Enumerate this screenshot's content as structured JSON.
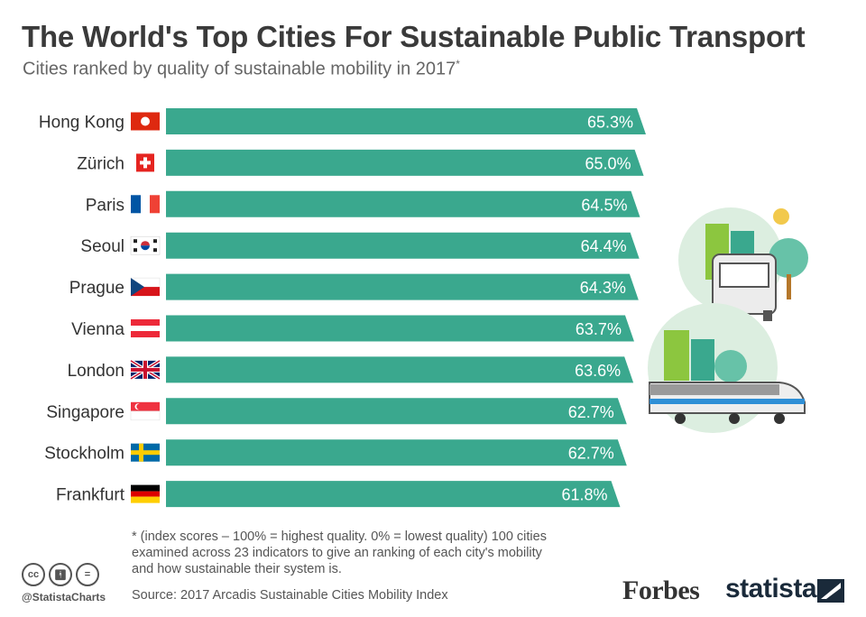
{
  "title": "The World's Top Cities For Sustainable Public Transport",
  "subtitle": "Cities ranked by quality of sustainable mobility in 2017",
  "subtitle_marker": "*",
  "footnote": "* (index scores – 100% = highest quality. 0% = lowest quality) 100 cities examined across 23 indicators to give an ranking of each city's mobility and how sustainable their system is.",
  "source": "Source: 2017 Arcadis Sustainable Cities Mobility Index",
  "handle": "@StatistaCharts",
  "brands": {
    "forbes": "Forbes",
    "statista": "statista"
  },
  "colors": {
    "bar": "#3aa88e",
    "bar_text": "#ffffff",
    "title": "#3a3a3a"
  },
  "chart_data": {
    "type": "bar",
    "orientation": "horizontal",
    "categories": [
      "Hong Kong",
      "Zürich",
      "Paris",
      "Seoul",
      "Prague",
      "Vienna",
      "London",
      "Singapore",
      "Stockholm",
      "Frankfurt"
    ],
    "values": [
      65.3,
      65.0,
      64.5,
      64.4,
      64.3,
      63.7,
      63.6,
      62.7,
      62.7,
      61.8
    ],
    "value_labels": [
      "65.3%",
      "65.0%",
      "64.5%",
      "64.4%",
      "64.3%",
      "63.7%",
      "63.6%",
      "62.7%",
      "62.7%",
      "61.8%"
    ],
    "flags": [
      "hong-kong-flag",
      "switzerland-flag",
      "france-flag",
      "south-korea-flag",
      "czech-flag",
      "austria-flag",
      "uk-flag",
      "singapore-flag",
      "sweden-flag",
      "germany-flag"
    ],
    "unit": "%",
    "xlim": [
      0,
      65.3
    ],
    "grid": false,
    "legend": "none"
  }
}
